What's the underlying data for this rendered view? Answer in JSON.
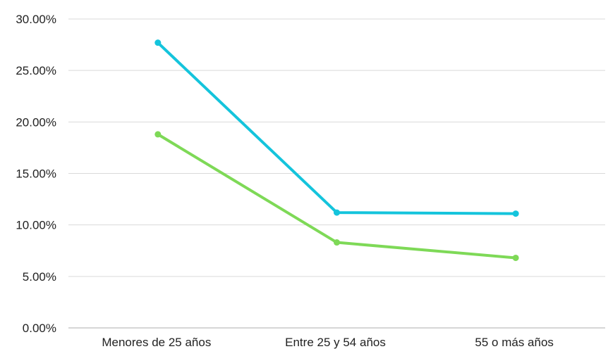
{
  "chart_data": {
    "type": "line",
    "title": "",
    "xlabel": "",
    "ylabel": "",
    "categories": [
      "Menores de 25 años",
      "Entre 25 y 54 años",
      "55 o más años"
    ],
    "y_ticks": [
      "0.00%",
      "5.00%",
      "10.00%",
      "15.00%",
      "20.00%",
      "25.00%",
      "30.00%"
    ],
    "ylim": [
      0,
      30
    ],
    "grid": true,
    "legend": "none",
    "series": [
      {
        "color": "#14c4dc",
        "values": [
          27.7,
          11.2,
          11.1
        ]
      },
      {
        "color": "#7ed957",
        "values": [
          18.8,
          8.3,
          6.8
        ]
      }
    ]
  }
}
